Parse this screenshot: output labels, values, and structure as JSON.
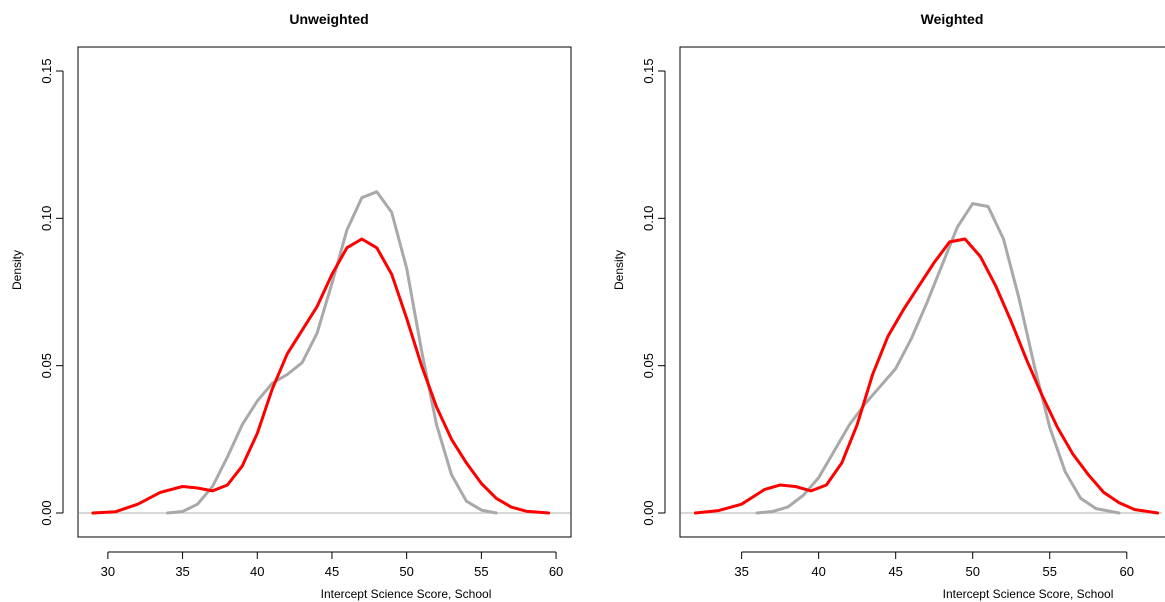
{
  "chart_data": [
    {
      "type": "line",
      "title": "Unweighted",
      "xlabel": "Intercept Science Score, School",
      "ylabel": "Density",
      "xlim": [
        28,
        61
      ],
      "ylim": [
        0,
        0.15
      ],
      "xticks": [
        "30",
        "35",
        "40",
        "45",
        "50",
        "55",
        "60"
      ],
      "yticks": [
        "0.00",
        "0.05",
        "0.10",
        "0.15"
      ],
      "grid": false,
      "baseline": 0,
      "series": [
        {
          "color": "#ff0000",
          "x": [
            29,
            30.5,
            32,
            33.5,
            35,
            36,
            37,
            38,
            39,
            40,
            41,
            42,
            43,
            44,
            45,
            46,
            47,
            48,
            49,
            50,
            51,
            52,
            53,
            54,
            55,
            56,
            57,
            58,
            59.5
          ],
          "y": [
            0.0,
            0.0004,
            0.003,
            0.007,
            0.009,
            0.0085,
            0.0075,
            0.0095,
            0.016,
            0.027,
            0.042,
            0.054,
            0.062,
            0.07,
            0.081,
            0.09,
            0.093,
            0.09,
            0.081,
            0.066,
            0.05,
            0.036,
            0.025,
            0.017,
            0.01,
            0.005,
            0.002,
            0.0006,
            0.0
          ]
        },
        {
          "color": "#a9a9a9",
          "x": [
            34,
            35,
            36,
            37,
            38,
            39,
            40,
            41,
            42,
            43,
            44,
            45,
            46,
            47,
            48,
            49,
            50,
            51,
            52,
            53,
            54,
            55,
            56
          ],
          "y": [
            0.0,
            0.0005,
            0.003,
            0.009,
            0.019,
            0.03,
            0.038,
            0.044,
            0.047,
            0.051,
            0.061,
            0.078,
            0.096,
            0.107,
            0.109,
            0.102,
            0.083,
            0.055,
            0.03,
            0.013,
            0.004,
            0.001,
            0.0
          ]
        }
      ]
    },
    {
      "type": "line",
      "title": "Weighted",
      "xlabel": "Intercept Science Score, School",
      "ylabel": "Density",
      "xlim": [
        31,
        63
      ],
      "ylim": [
        0,
        0.15
      ],
      "xticks": [
        "35",
        "40",
        "45",
        "50",
        "55",
        "60"
      ],
      "yticks": [
        "0.00",
        "0.05",
        "0.10",
        "0.15"
      ],
      "grid": false,
      "baseline": 0,
      "series": [
        {
          "color": "#ff0000",
          "x": [
            32,
            33.5,
            35,
            36.5,
            37.5,
            38.5,
            39.5,
            40.5,
            41.5,
            42.5,
            43.5,
            44.5,
            45.5,
            46.5,
            47.5,
            48.5,
            49.5,
            50.5,
            51.5,
            52.5,
            53.5,
            54.5,
            55.5,
            56.5,
            57.5,
            58.5,
            59.5,
            60.5,
            62
          ],
          "y": [
            0.0,
            0.0008,
            0.003,
            0.008,
            0.0095,
            0.009,
            0.0075,
            0.0095,
            0.017,
            0.03,
            0.047,
            0.06,
            0.069,
            0.077,
            0.085,
            0.092,
            0.093,
            0.087,
            0.077,
            0.065,
            0.052,
            0.04,
            0.029,
            0.02,
            0.013,
            0.007,
            0.0035,
            0.0012,
            0.0
          ]
        },
        {
          "color": "#a9a9a9",
          "x": [
            36,
            37,
            38,
            39,
            40,
            41,
            42,
            43,
            44,
            45,
            46,
            47,
            48,
            49,
            50,
            51,
            52,
            53,
            54,
            55,
            56,
            57,
            58,
            59.5
          ],
          "y": [
            0.0,
            0.0005,
            0.002,
            0.006,
            0.012,
            0.021,
            0.03,
            0.037,
            0.043,
            0.049,
            0.059,
            0.071,
            0.084,
            0.097,
            0.105,
            0.104,
            0.093,
            0.073,
            0.05,
            0.029,
            0.014,
            0.005,
            0.0015,
            0.0
          ]
        }
      ]
    }
  ]
}
